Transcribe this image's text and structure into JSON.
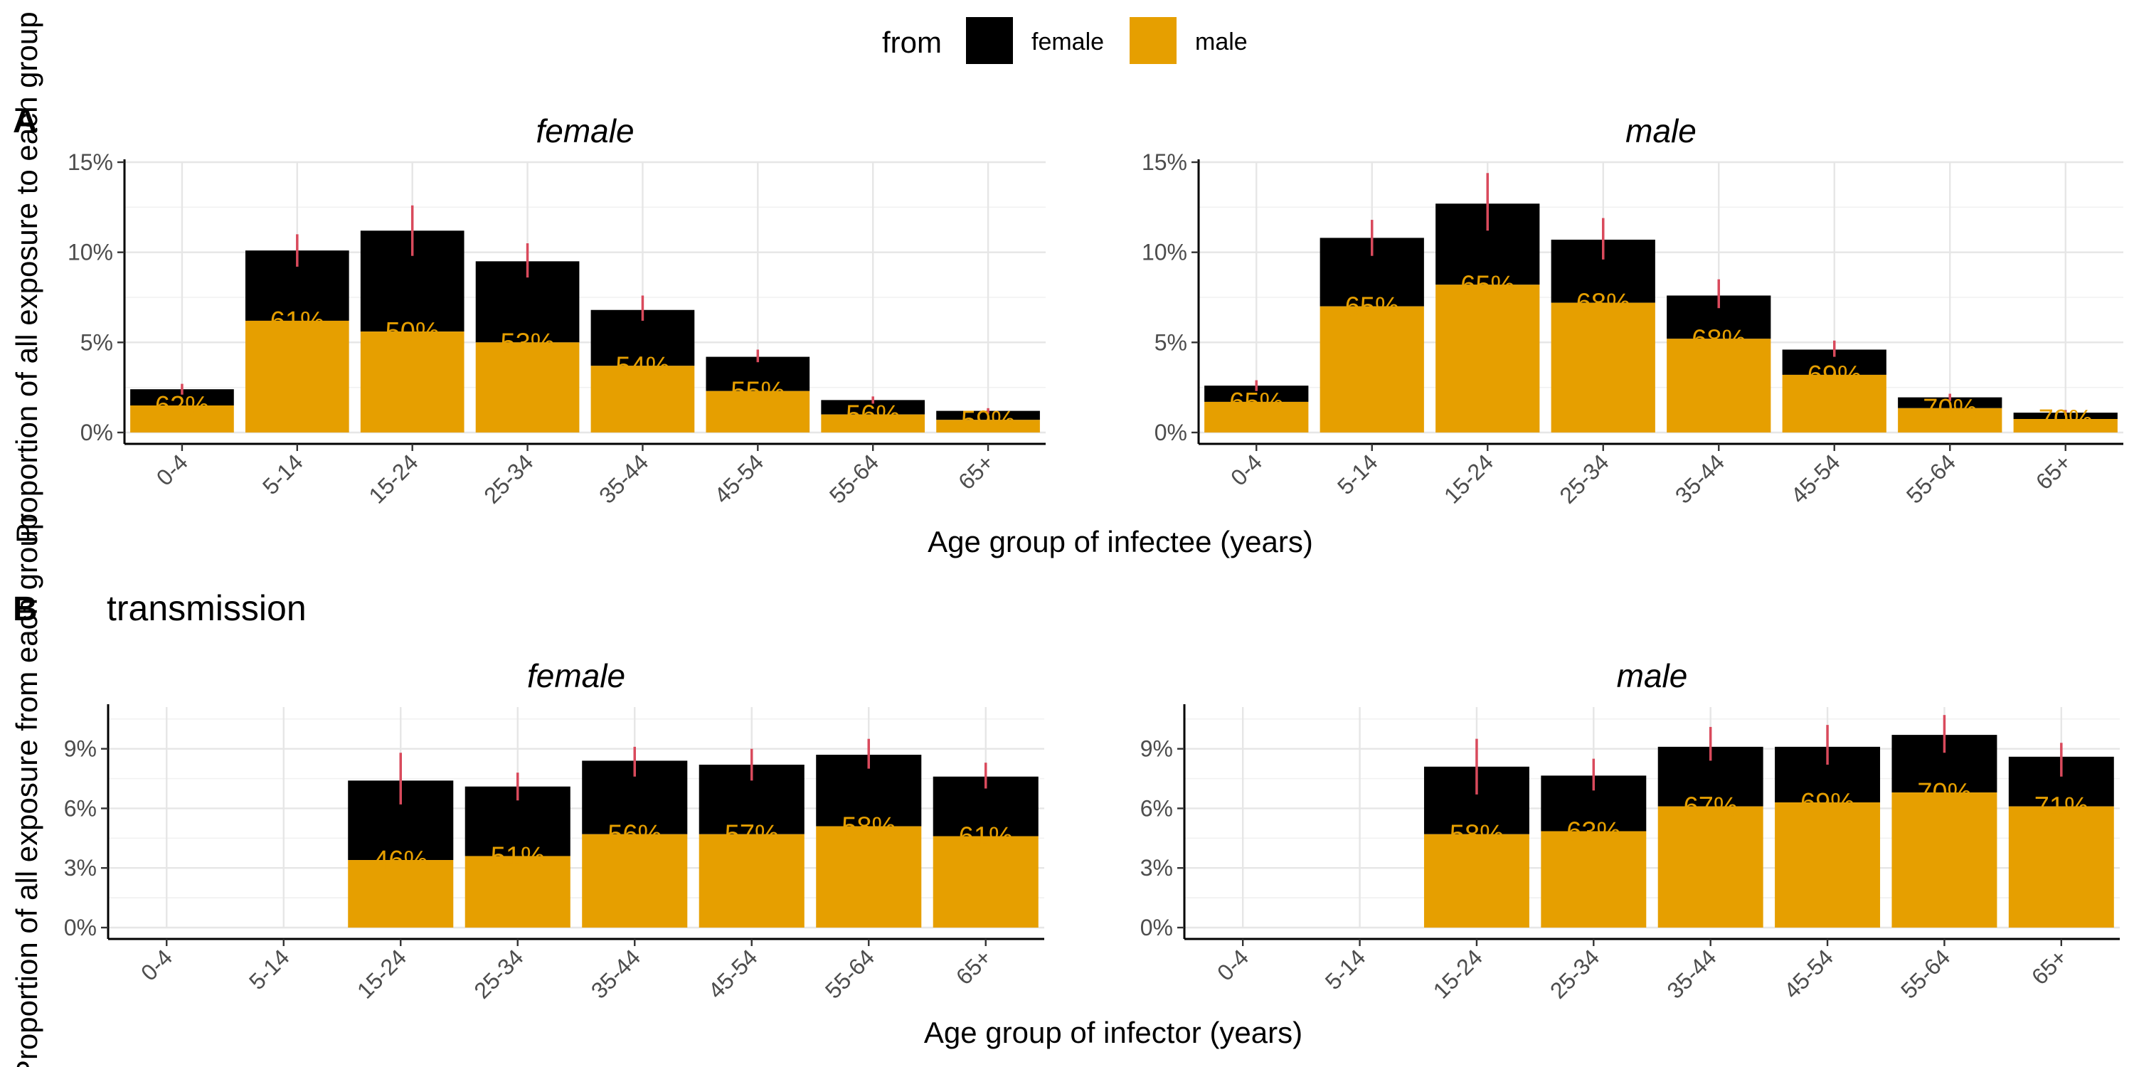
{
  "legend": {
    "title": "from",
    "items": [
      {
        "label": "female",
        "color": "#000000"
      },
      {
        "label": "male",
        "color": "#E69F00"
      }
    ]
  },
  "panel_tags": [
    "A",
    "B"
  ],
  "panel_b_title": "transmission",
  "y_label_a": "Proportion of all exposure to each group",
  "y_label_b": "Proportion of all exposure from each group",
  "x_label_a": "Age group of infectee (years)",
  "x_label_b": "Age group of infector (years)",
  "colors": {
    "female": "#000000",
    "male": "#E69F00",
    "errorbar": "#D94A5C",
    "pct_text": "#E69F00"
  },
  "chart_data": [
    {
      "type": "bar",
      "panel": "A",
      "facet": "female",
      "categories": [
        "0-4",
        "5-14",
        "15-24",
        "25-34",
        "35-44",
        "45-54",
        "55-64",
        "65+"
      ],
      "series": [
        {
          "name": "female",
          "values": [
            0.9,
            3.9,
            5.6,
            4.5,
            3.1,
            1.9,
            0.8,
            0.5
          ]
        },
        {
          "name": "male",
          "values": [
            1.5,
            6.2,
            5.6,
            5.0,
            3.7,
            2.3,
            1.0,
            0.7
          ]
        }
      ],
      "totals": [
        2.4,
        10.1,
        11.2,
        9.5,
        6.8,
        4.2,
        1.8,
        1.2
      ],
      "error_low": [
        2.1,
        9.2,
        9.8,
        8.6,
        6.2,
        3.9,
        1.6,
        1.05
      ],
      "error_high": [
        2.7,
        11.0,
        12.6,
        10.5,
        7.6,
        4.6,
        2.0,
        1.35
      ],
      "labels": [
        "62%",
        "61%",
        "50%",
        "53%",
        "54%",
        "55%",
        "56%",
        "59%"
      ],
      "yticks": [
        "0%",
        "5%",
        "10%",
        "15%"
      ],
      "ytick_values": [
        0,
        5,
        10,
        15
      ],
      "ylim": [
        0,
        15
      ]
    },
    {
      "type": "bar",
      "panel": "A",
      "facet": "male",
      "categories": [
        "0-4",
        "5-14",
        "15-24",
        "25-34",
        "35-44",
        "45-54",
        "55-64",
        "65+"
      ],
      "series": [
        {
          "name": "female",
          "values": [
            0.9,
            3.8,
            4.5,
            3.5,
            2.4,
            1.4,
            0.6,
            0.35
          ]
        },
        {
          "name": "male",
          "values": [
            1.7,
            7.0,
            8.2,
            7.2,
            5.2,
            3.2,
            1.35,
            0.75
          ]
        }
      ],
      "totals": [
        2.6,
        10.8,
        12.7,
        10.7,
        7.6,
        4.6,
        1.95,
        1.1
      ],
      "error_low": [
        2.3,
        9.8,
        11.2,
        9.6,
        6.9,
        4.2,
        1.75,
        0.95
      ],
      "error_high": [
        2.9,
        11.8,
        14.4,
        11.9,
        8.5,
        5.1,
        2.15,
        1.25
      ],
      "labels": [
        "65%",
        "65%",
        "65%",
        "68%",
        "68%",
        "69%",
        "70%",
        "70%"
      ],
      "yticks": [
        "0%",
        "5%",
        "10%",
        "15%"
      ],
      "ytick_values": [
        0,
        5,
        10,
        15
      ],
      "ylim": [
        0,
        15
      ]
    },
    {
      "type": "bar",
      "panel": "B",
      "facet": "female",
      "categories": [
        "0-4",
        "5-14",
        "15-24",
        "25-34",
        "35-44",
        "45-54",
        "55-64",
        "65+"
      ],
      "series": [
        {
          "name": "female",
          "values": [
            null,
            null,
            4.0,
            3.5,
            3.7,
            3.5,
            3.6,
            3.0
          ]
        },
        {
          "name": "male",
          "values": [
            null,
            null,
            3.4,
            3.6,
            4.7,
            4.7,
            5.1,
            4.6
          ]
        }
      ],
      "totals": [
        null,
        null,
        7.4,
        7.1,
        8.4,
        8.2,
        8.7,
        7.6
      ],
      "error_low": [
        null,
        null,
        6.2,
        6.4,
        7.6,
        7.4,
        8.0,
        7.0
      ],
      "error_high": [
        null,
        null,
        8.8,
        7.8,
        9.1,
        9.0,
        9.5,
        8.3
      ],
      "labels": [
        null,
        null,
        "46%",
        "51%",
        "56%",
        "57%",
        "58%",
        "61%"
      ],
      "yticks": [
        "0%",
        "3%",
        "6%",
        "9%"
      ],
      "ytick_values": [
        0,
        3,
        6,
        9
      ],
      "ylim": [
        0,
        11.1
      ]
    },
    {
      "type": "bar",
      "panel": "B",
      "facet": "male",
      "categories": [
        "0-4",
        "5-14",
        "15-24",
        "25-34",
        "35-44",
        "45-54",
        "55-64",
        "65+"
      ],
      "series": [
        {
          "name": "female",
          "values": [
            null,
            null,
            3.4,
            2.8,
            3.0,
            2.8,
            2.9,
            2.5
          ]
        },
        {
          "name": "male",
          "values": [
            null,
            null,
            4.7,
            4.85,
            6.1,
            6.3,
            6.8,
            6.1
          ]
        }
      ],
      "totals": [
        null,
        null,
        8.1,
        7.65,
        9.1,
        9.1,
        9.7,
        8.6
      ],
      "error_low": [
        null,
        null,
        6.7,
        6.9,
        8.4,
        8.2,
        8.8,
        7.6
      ],
      "error_high": [
        null,
        null,
        9.5,
        8.5,
        10.1,
        10.2,
        10.7,
        9.3
      ],
      "labels": [
        null,
        null,
        "58%",
        "63%",
        "67%",
        "69%",
        "70%",
        "71%"
      ],
      "yticks": [
        "0%",
        "3%",
        "6%",
        "9%"
      ],
      "ytick_values": [
        0,
        3,
        6,
        9
      ],
      "ylim": [
        0,
        11.1
      ]
    }
  ]
}
